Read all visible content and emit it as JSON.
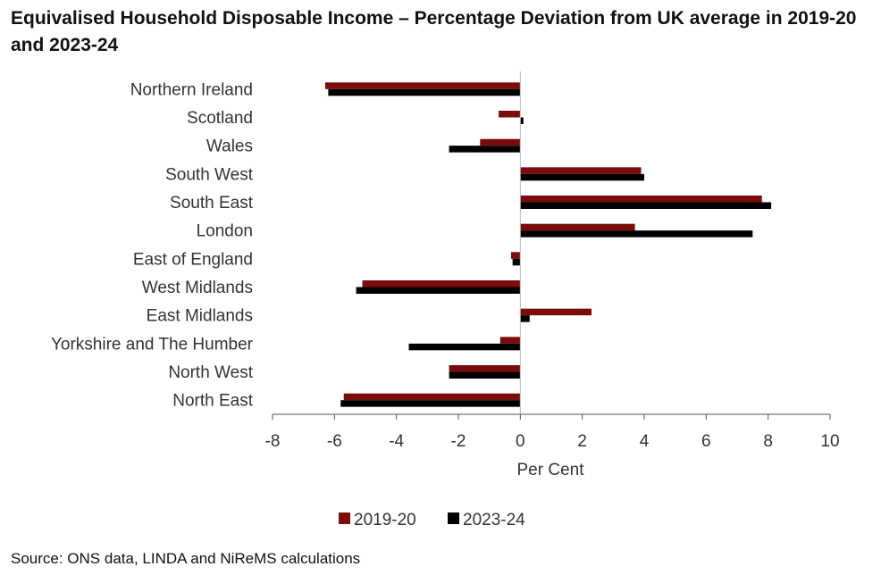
{
  "chart_data": {
    "type": "bar",
    "orientation": "horizontal",
    "title": "Equivalised Household Disposable Income – Percentage Deviation from UK average in 2019-20 and 2023-24",
    "categories": [
      "Northern Ireland",
      "Scotland",
      "Wales",
      "South West",
      "South East",
      "London",
      "East of England",
      "West Midlands",
      "East Midlands",
      "Yorkshire and The Humber",
      "North West",
      "North East"
    ],
    "series": [
      {
        "name": "2019-20",
        "color": "#7b0c0c",
        "values": [
          -6.3,
          -0.7,
          -1.3,
          3.9,
          7.8,
          3.7,
          -0.3,
          -5.1,
          2.3,
          -0.65,
          -2.3,
          -5.7
        ]
      },
      {
        "name": "2023-24",
        "color": "#000000",
        "values": [
          -6.2,
          0.1,
          -2.3,
          4.0,
          8.1,
          7.5,
          -0.25,
          -5.3,
          0.3,
          -3.6,
          -2.3,
          -5.8
        ]
      }
    ],
    "xlabel": "Per Cent",
    "ylabel": "",
    "xlim": [
      -8,
      10
    ],
    "xticks": [
      -8,
      -6,
      -4,
      -2,
      0,
      2,
      4,
      6,
      8,
      10
    ],
    "xtick_labels": [
      "-8",
      "-6",
      "-4",
      "-2",
      "0",
      "2",
      "4",
      "6",
      "8",
      "10"
    ],
    "grid": false,
    "legend": "bottom-center"
  },
  "source_note": "Source: ONS data, LINDA and NiReMS calculations"
}
